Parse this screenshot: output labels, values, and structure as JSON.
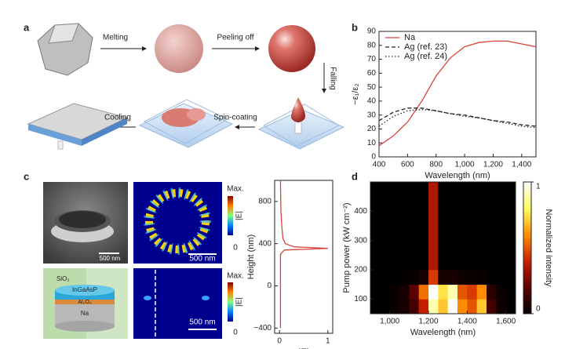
{
  "panel_labels": [
    "a",
    "b",
    "c",
    "d"
  ],
  "panel_a": {
    "steps": [
      "Melting",
      "Peeling off",
      "Falling",
      "Spin-coating",
      "Cooling"
    ]
  },
  "panel_c": {
    "scale_bars": [
      "500 nm",
      "500 nm",
      "500 nm"
    ],
    "layers": [
      "SiO₂",
      "InGaAsP",
      "Al₂O₃",
      "Na"
    ],
    "colorbars": [
      {
        "max": "Max.",
        "min": 0,
        "label": "|E|"
      },
      {
        "max": "Max.",
        "min": 0,
        "label": "|E|"
      }
    ]
  },
  "chart_data": [
    {
      "type": "line",
      "xlabel": "Wavelength (nm)",
      "ylabel": "−ε₁/ε₂",
      "x": [
        400,
        500,
        600,
        700,
        800,
        900,
        1000,
        1100,
        1200,
        1300,
        1400,
        1500
      ],
      "xlim": [
        400,
        1500
      ],
      "ylim": [
        0,
        90
      ],
      "xticks": [
        400,
        600,
        800,
        {
          "value": 1000,
          "label": "1,000"
        },
        {
          "value": 1200,
          "label": "1,200"
        },
        {
          "value": 1400,
          "label": "1,400"
        }
      ],
      "yticks": [
        0,
        10,
        20,
        30,
        40,
        50,
        60,
        70,
        80,
        90
      ],
      "legend": "upper left",
      "series": [
        {
          "name": "Na",
          "color": "#d9443a",
          "dash": "solid",
          "values": [
            8,
            15,
            25,
            40,
            58,
            71,
            79,
            82,
            83,
            83,
            81,
            79
          ]
        },
        {
          "name": "Ag (ref. 23)",
          "color": "#222222",
          "dash": "dashed",
          "values": [
            26,
            32,
            35,
            35,
            33,
            31,
            30,
            28,
            26,
            25,
            23,
            22
          ]
        },
        {
          "name": "Ag (ref. 24)",
          "color": "#222222",
          "dash": "dotted",
          "values": [
            22,
            29,
            33,
            34,
            33,
            31,
            29,
            28,
            26,
            24,
            22,
            21
          ]
        }
      ]
    },
    {
      "type": "line",
      "xlabel": "|E|",
      "ylabel": "Height (nm)",
      "xlim": [
        -0.1,
        1.1
      ],
      "ylim": [
        -450,
        1000
      ],
      "xticks": [
        0,
        1
      ],
      "yticks": [
        {
          "value": -400,
          "label": "−400"
        },
        0,
        400,
        800
      ],
      "series": [
        {
          "color": "#d9443a",
          "dash": "solid",
          "x": [
            0.02,
            0.02,
            0.1,
            1,
            0.3,
            0.12,
            0.07,
            0.05,
            0.03,
            0.02
          ],
          "values": [
            -400,
            300,
            340,
            355,
            370,
            400,
            450,
            550,
            700,
            1000
          ]
        }
      ]
    },
    {
      "type": "heatmap",
      "xlabel": "Wavelength (nm)",
      "ylabel": "Pump power (kW cm⁻²)",
      "xlim": [
        900,
        1650
      ],
      "ylim": [
        50,
        500
      ],
      "xticks": [
        {
          "value": 1000,
          "label": "1,000"
        },
        {
          "value": 1200,
          "label": "1,200"
        },
        {
          "value": 1400,
          "label": "1,400"
        },
        {
          "value": 1600,
          "label": "1,600"
        }
      ],
      "yticks": [
        100,
        200,
        300,
        400
      ],
      "x_bins": [
        900,
        950,
        1000,
        1050,
        1100,
        1150,
        1200,
        1250,
        1300,
        1350,
        1400,
        1450,
        1500,
        1550,
        1600,
        1650
      ],
      "y_bins": [
        50,
        100,
        150,
        200,
        250,
        300,
        350,
        400,
        450,
        500
      ],
      "z": [
        [
          0,
          0,
          0.02,
          0.05,
          0.15,
          0.4,
          0.9,
          0.7,
          1,
          0.6,
          0.5,
          0.7,
          0.15,
          0.03,
          0
        ],
        [
          0,
          0,
          0.02,
          0.05,
          0.2,
          0.55,
          1,
          0.75,
          0.9,
          0.5,
          0.45,
          0.6,
          0.1,
          0.02,
          0
        ],
        [
          0,
          0,
          0,
          0.01,
          0.02,
          0.05,
          0.45,
          0.05,
          0.05,
          0.03,
          0.02,
          0.02,
          0,
          0,
          0
        ],
        [
          0,
          0,
          0,
          0,
          0,
          0,
          0.35,
          0,
          0,
          0,
          0,
          0,
          0,
          0,
          0
        ],
        [
          0,
          0,
          0,
          0,
          0,
          0,
          0.35,
          0,
          0,
          0,
          0,
          0,
          0,
          0,
          0
        ],
        [
          0,
          0,
          0,
          0,
          0,
          0,
          0.35,
          0,
          0,
          0,
          0,
          0,
          0,
          0,
          0
        ],
        [
          0,
          0,
          0,
          0,
          0,
          0,
          0.35,
          0,
          0,
          0,
          0,
          0,
          0,
          0,
          0
        ],
        [
          0,
          0,
          0,
          0,
          0,
          0,
          0.35,
          0,
          0,
          0,
          0,
          0,
          0,
          0,
          0
        ],
        [
          0,
          0,
          0,
          0,
          0,
          0,
          0.35,
          0,
          0,
          0,
          0,
          0,
          0,
          0,
          0
        ]
      ],
      "zlim": [
        0,
        1
      ],
      "colormap": [
        "#000000",
        "#5a0000",
        "#c81e00",
        "#ff8c00",
        "#ffff60",
        "#ffffff"
      ],
      "colorbar_ticks": [
        0,
        1
      ],
      "colorbar_label": "Normalized intensity"
    }
  ]
}
